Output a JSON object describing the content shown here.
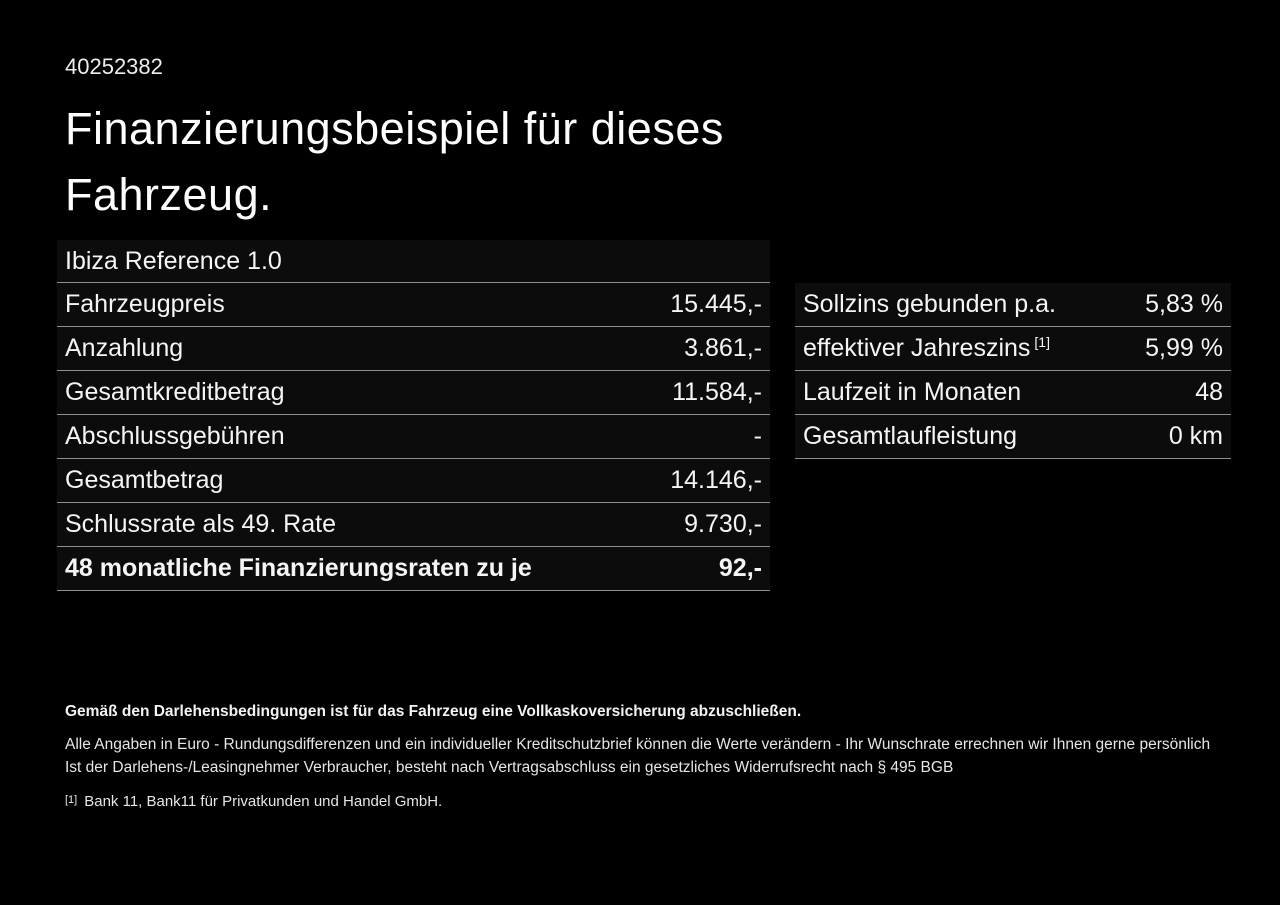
{
  "page": {
    "background_color": "#000000",
    "text_color": "#f5f5f5",
    "divider_color": "#8f8f8f",
    "row_background_color": "#0c0c0c"
  },
  "header": {
    "offer_id": "40252382",
    "title_line1": "Finanzierungsbeispiel für dieses",
    "title_line2": "Fahrzeug.",
    "model_name": "Ibiza Reference 1.0"
  },
  "finance_table": {
    "rows": [
      {
        "label": "Fahrzeugpreis",
        "value": "15.445,-"
      },
      {
        "label": "Anzahlung",
        "value": "3.861,-"
      },
      {
        "label": "Gesamtkreditbetrag",
        "value": "11.584,-"
      },
      {
        "label": "Abschlussgebühren",
        "value": "-"
      },
      {
        "label": "Gesamtbetrag",
        "value": "14.146,-"
      },
      {
        "label": "Schlussrate als 49. Rate",
        "value": "9.730,-"
      },
      {
        "label": "48 monatliche Finanzierungsraten zu je",
        "value": "92,-"
      }
    ]
  },
  "conditions_table": {
    "rows": [
      {
        "label": "Sollzins gebunden p.a.",
        "value": "5,83 %"
      },
      {
        "label": "effektiver Jahreszins",
        "footnote_marker": "[1]",
        "value": "5,99 %"
      },
      {
        "label": "Laufzeit in Monaten",
        "value": "48"
      },
      {
        "label": "Gesamtlaufleistung",
        "value": "0 km"
      }
    ]
  },
  "footer": {
    "insurance_note": "Gemäß den Darlehensbedingungen ist für das Fahrzeug eine Vollkaskoversicherung abzuschließen.",
    "note_line1": "Alle Angaben in Euro - Rundungsdifferenzen und ein individueller Kreditschutzbrief können die Werte verändern - Ihr Wunschrate errechnen wir Ihnen gerne persönlich",
    "note_line2": "Ist der Darlehens-/Leasingnehmer Verbraucher, besteht nach Vertragsabschluss ein gesetzliches Widerrufsrecht nach § 495 BGB",
    "footnote_marker": "[1]",
    "footnote_text": "Bank 11, Bank11 für Privatkunden und Handel GmbH."
  }
}
